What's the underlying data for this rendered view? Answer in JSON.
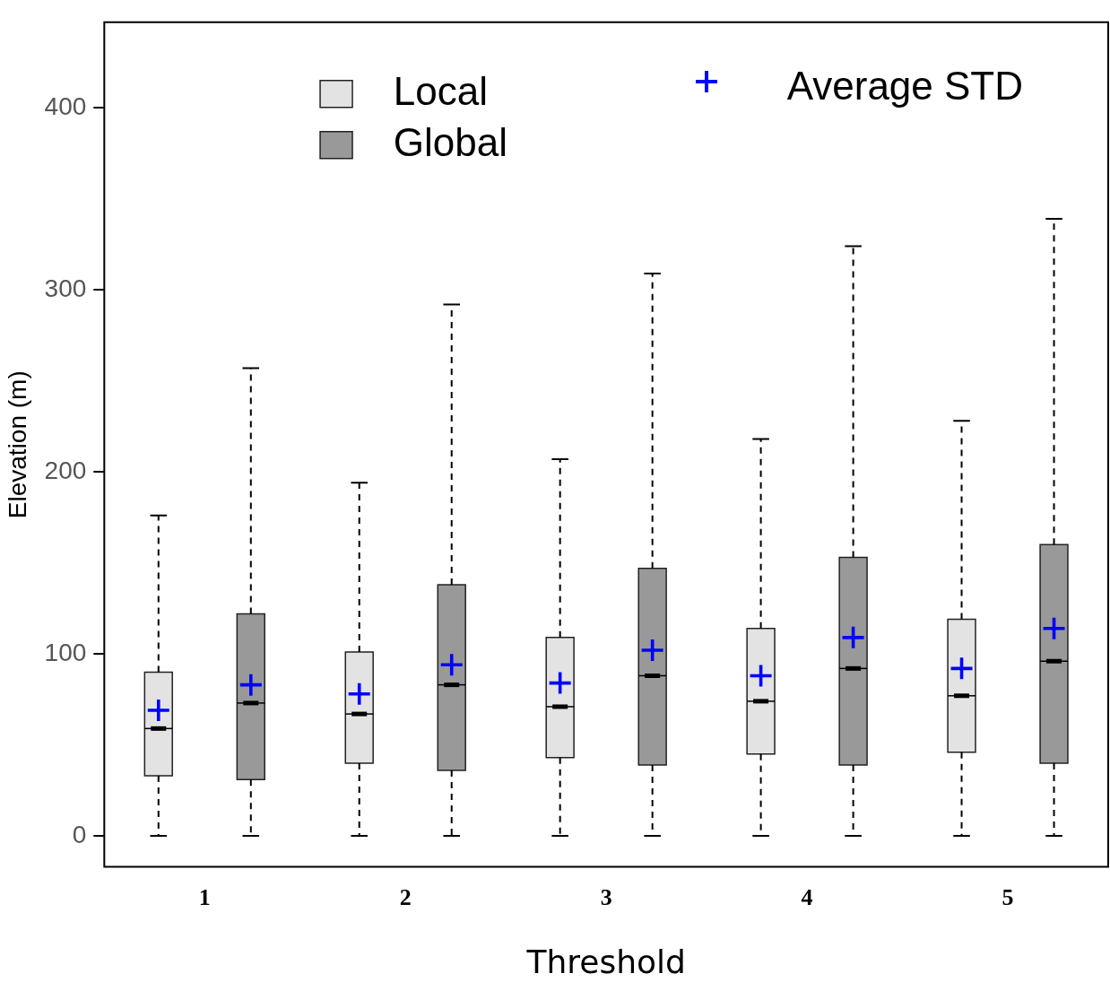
{
  "chart_data": {
    "type": "box",
    "xlabel": "Threshold",
    "ylabel": "Elevation (m)",
    "categories": [
      "1",
      "2",
      "3",
      "4",
      "5"
    ],
    "ylim": [
      -17,
      447
    ],
    "yticks": [
      0,
      100,
      200,
      300,
      400
    ],
    "legend": "top",
    "annotations": [
      "Average STD"
    ],
    "series": [
      {
        "name": "Local",
        "color": "#e3e3e3",
        "boxes": [
          {
            "low": 0,
            "q1": 33,
            "median": 59,
            "q3": 90,
            "high": 176,
            "mean": 69
          },
          {
            "low": 0,
            "q1": 40,
            "median": 67,
            "q3": 101,
            "high": 194,
            "mean": 78
          },
          {
            "low": 0,
            "q1": 43,
            "median": 71,
            "q3": 109,
            "high": 207,
            "mean": 84
          },
          {
            "low": 0,
            "q1": 45,
            "median": 74,
            "q3": 114,
            "high": 218,
            "mean": 88
          },
          {
            "low": 0,
            "q1": 46,
            "median": 77,
            "q3": 119,
            "high": 228,
            "mean": 92
          }
        ]
      },
      {
        "name": "Global",
        "color": "#999999",
        "boxes": [
          {
            "low": 0,
            "q1": 31,
            "median": 73,
            "q3": 122,
            "high": 257,
            "mean": 83
          },
          {
            "low": 0,
            "q1": 36,
            "median": 83,
            "q3": 138,
            "high": 292,
            "mean": 94
          },
          {
            "low": 0,
            "q1": 39,
            "median": 88,
            "q3": 147,
            "high": 309,
            "mean": 102
          },
          {
            "low": 0,
            "q1": 39,
            "median": 92,
            "q3": 153,
            "high": 324,
            "mean": 109
          },
          {
            "low": 0,
            "q1": 40,
            "median": 96,
            "q3": 160,
            "high": 339,
            "mean": 114
          }
        ]
      }
    ]
  }
}
